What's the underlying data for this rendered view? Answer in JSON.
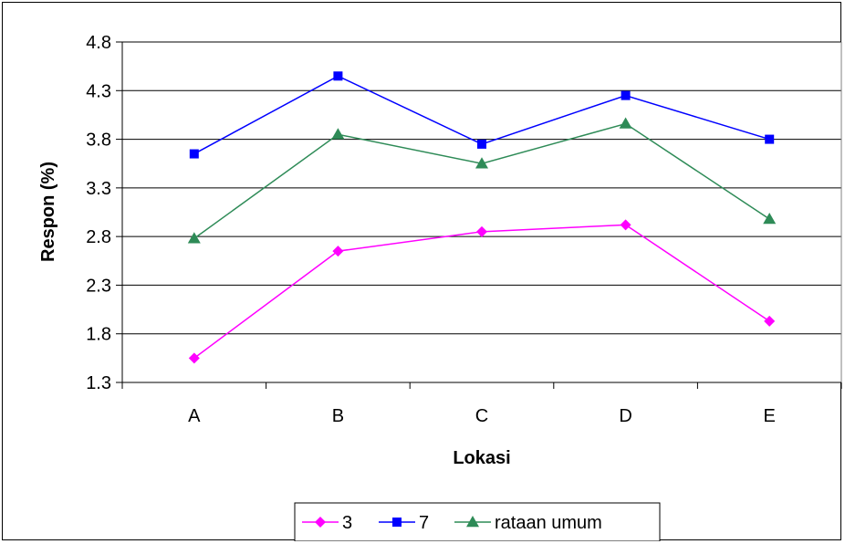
{
  "chart_data": {
    "type": "line",
    "title": "",
    "xlabel": "Lokasi",
    "ylabel": "Respon (%)",
    "categories": [
      "A",
      "B",
      "C",
      "D",
      "E"
    ],
    "ylim": [
      1.3,
      4.8
    ],
    "yticks": [
      "1.3",
      "1.8",
      "2.3",
      "2.8",
      "3.3",
      "3.8",
      "4.3",
      "4.8"
    ],
    "grid": "horizontal",
    "legend_position": "bottom",
    "series": [
      {
        "name": "3",
        "values": [
          1.55,
          2.65,
          2.85,
          2.92,
          1.93
        ],
        "color": "#ff00ff",
        "marker": "diamond"
      },
      {
        "name": "7",
        "values": [
          3.65,
          4.45,
          3.75,
          4.25,
          3.8
        ],
        "color": "#0000ff",
        "marker": "square"
      },
      {
        "name": "rataan umum",
        "values": [
          2.78,
          3.85,
          3.55,
          3.96,
          2.98
        ],
        "color": "#2e8b57",
        "marker": "triangle"
      }
    ]
  }
}
